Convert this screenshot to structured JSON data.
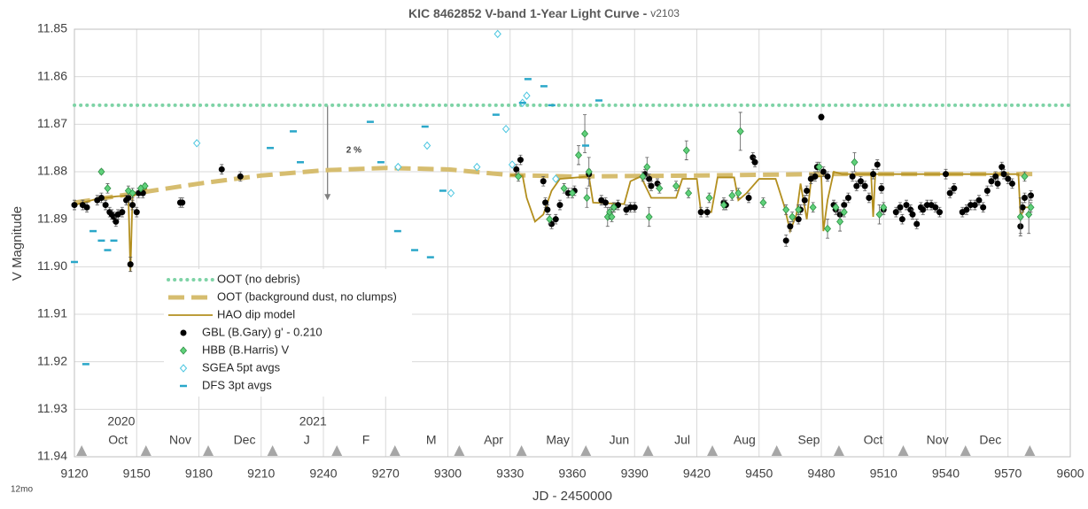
{
  "chart_data": {
    "type": "scatter",
    "title": "KIC 8462852 V-band 1-Year Light Curve -",
    "version": "v2103",
    "xlabel": "JD - 2450000",
    "ylabel": "V Magnitude",
    "footnote": "12mo",
    "xlim": [
      9120,
      9600
    ],
    "xticks": [
      9120,
      9150,
      9180,
      9210,
      9240,
      9270,
      9300,
      9330,
      9360,
      9390,
      9420,
      9450,
      9480,
      9510,
      9540,
      9570,
      9600
    ],
    "ylim": [
      11.85,
      11.94
    ],
    "y_reversed": true,
    "yticks": [
      11.85,
      11.86,
      11.87,
      11.88,
      11.89,
      {
        "value": 11.9,
        "label": "11.90"
      },
      11.91,
      11.92,
      11.93,
      11.94
    ],
    "grid": true,
    "month_markers": [
      9123.5,
      9154.5,
      9184.5,
      9215.5,
      9246.5,
      9274.5,
      9305.5,
      9335.5,
      9366.5,
      9396.5,
      9427.5,
      9458.5,
      9488.5,
      9519.5,
      9549.5,
      9580.5
    ],
    "month_labels": {
      "x": [
        9141,
        9171,
        9202,
        9232,
        9260.5,
        9292,
        9322,
        9353,
        9382.6,
        9413,
        9443,
        9474,
        9505,
        9536,
        9561.5
      ],
      "labels": [
        "Oct",
        "Nov",
        "Dec",
        "J",
        "F",
        "M",
        "Apr",
        "May",
        "Jun",
        "Jul",
        "Aug",
        "Sep",
        "Oct",
        "Nov",
        "Dec"
      ]
    },
    "year_labels": {
      "x": [
        9142.6,
        9235
      ],
      "labels": [
        "2020",
        "2021"
      ]
    },
    "annotation": {
      "text": "2 %",
      "x": 9251,
      "y": 11.8755,
      "arrow_x": 9242,
      "arrow_from": 11.866,
      "arrow_to": 11.886
    },
    "series": [
      {
        "name": "OOT (no debris)",
        "style": "dotted",
        "color": "#7ed3a6",
        "x": [
          9120,
          9600
        ],
        "values": [
          11.866,
          11.866
        ]
      },
      {
        "name": "OOT (background dust, no clumps)",
        "style": "dashed",
        "color": "#d6bd6f",
        "x": [
          9120,
          9150,
          9180,
          9210,
          9240,
          9270,
          9300,
          9330,
          9360,
          9420,
          9480,
          9582
        ],
        "values": [
          11.8865,
          11.8845,
          11.8825,
          11.8808,
          11.8797,
          11.8792,
          11.8795,
          11.8807,
          11.881,
          11.8808,
          11.8805,
          11.8805
        ]
      },
      {
        "name": "HAO dip model",
        "style": "line",
        "color": "#b38f1f",
        "x": [
          9120,
          9130,
          9140,
          9146,
          9147,
          9148,
          9155,
          9240,
          9330,
          9336,
          9338,
          9342,
          9346,
          9350,
          9354,
          9368,
          9370,
          9385,
          9388,
          9393,
          9398,
          9410,
          9413,
          9420,
          9422,
          9427,
          9430,
          9438,
          9440,
          9444,
          9450,
          9458,
          9462,
          9465,
          9468,
          9470,
          9473,
          9475,
          9478,
          9480,
          9481,
          9483,
          9486,
          9490,
          9504,
          9505,
          9506,
          9575,
          9576,
          9578,
          9581
        ],
        "values": [
          11.887,
          11.8858,
          11.8852,
          11.885,
          11.901,
          11.8852,
          11.8835,
          null,
          11.8807,
          11.8808,
          11.8855,
          11.8905,
          11.889,
          11.884,
          11.8815,
          11.881,
          11.8865,
          11.8868,
          11.882,
          11.881,
          11.8855,
          11.8855,
          11.8815,
          11.8815,
          11.8885,
          11.8885,
          11.8812,
          11.8812,
          11.886,
          11.8845,
          11.8815,
          11.8815,
          11.887,
          11.8925,
          11.889,
          11.8825,
          11.89,
          11.882,
          11.881,
          11.881,
          11.8925,
          11.886,
          11.88,
          11.8805,
          11.8805,
          11.8895,
          11.8805,
          11.8805,
          11.8895,
          11.8875,
          11.8875
        ]
      },
      {
        "name": "GBL (B.Gary) g' - 0.210",
        "style": "dot",
        "color": "#000000",
        "x": [
          9120,
          9124,
          9126,
          9131,
          9133,
          9135,
          9137,
          9138,
          9139,
          9140,
          9141,
          9143,
          9145,
          9146,
          9147,
          9148,
          9150,
          9151,
          9153,
          9171,
          9172,
          9191,
          9200,
          9333,
          9335,
          9346,
          9347,
          9348,
          9350,
          9352,
          9354,
          9358,
          9361,
          9368,
          9374,
          9376,
          9378,
          9380,
          9382,
          9386,
          9388,
          9390,
          9395,
          9397,
          9398,
          9401,
          9422,
          9425,
          9433,
          9434,
          9445,
          9447,
          9448,
          9463,
          9465,
          9469,
          9470,
          9472,
          9473,
          9475,
          9477,
          9478,
          9480,
          9481,
          9483,
          9486,
          9487,
          9489,
          9491,
          9493,
          9495,
          9497,
          9499,
          9501,
          9503,
          9505,
          9507,
          9509,
          9510,
          9516,
          9518,
          9519,
          9521,
          9523,
          9524,
          9526,
          9528,
          9529,
          9531,
          9533,
          9535,
          9537,
          9540,
          9542,
          9544,
          9548,
          9550,
          9552,
          9554,
          9556,
          9558,
          9560,
          9562,
          9564,
          9565,
          9567,
          9568,
          9570,
          9572,
          9576,
          9577,
          9578,
          9581
        ],
        "values": [
          11.887,
          11.887,
          11.8875,
          11.886,
          11.8855,
          11.887,
          11.8885,
          11.889,
          11.8895,
          11.8905,
          11.889,
          11.8885,
          11.886,
          11.8855,
          11.8995,
          11.887,
          11.8885,
          11.8845,
          11.8845,
          11.8865,
          11.8865,
          11.8795,
          11.881,
          11.8795,
          11.8775,
          11.882,
          11.8865,
          11.888,
          11.891,
          11.89,
          11.887,
          11.8845,
          11.884,
          11.8805,
          11.886,
          11.8865,
          11.889,
          11.8875,
          11.887,
          11.888,
          11.8875,
          11.8875,
          11.8805,
          11.8815,
          11.883,
          11.8825,
          11.8885,
          11.8885,
          11.8865,
          11.887,
          11.8855,
          11.877,
          11.878,
          11.8945,
          11.8915,
          11.89,
          11.888,
          11.886,
          11.884,
          11.8815,
          11.881,
          11.879,
          11.8685,
          11.88,
          11.881,
          11.887,
          11.888,
          11.889,
          11.887,
          11.8855,
          11.881,
          11.883,
          11.882,
          11.883,
          11.8855,
          11.8805,
          11.8785,
          11.8835,
          11.888,
          11.8885,
          11.8875,
          11.89,
          11.887,
          11.888,
          11.889,
          11.891,
          11.8875,
          11.888,
          11.887,
          11.887,
          11.8875,
          11.8885,
          11.8805,
          11.8845,
          11.8835,
          11.8885,
          11.888,
          11.887,
          11.887,
          11.886,
          11.8875,
          11.884,
          11.882,
          11.881,
          11.8825,
          11.879,
          11.8805,
          11.8815,
          11.8825,
          11.8915,
          11.8875,
          11.8855,
          11.885
        ],
        "errors": [
          0.001,
          0.001,
          0.001,
          0.001,
          0.001,
          0.001,
          0.001,
          0.001,
          0.001,
          0.001,
          0.001,
          0.001,
          0.001,
          0.001,
          0.0015,
          0.001,
          0.001,
          0.001,
          0.001,
          0.001,
          0.001,
          0.001,
          0.001,
          0.001,
          0.001,
          0.001,
          0.001,
          0.001,
          0.001,
          0.001,
          0.001,
          0.001,
          0.001,
          0.001,
          0.001,
          0.001,
          0.001,
          0.001,
          0.001,
          0.001,
          0.001,
          0.001,
          0.001,
          0.001,
          0.001,
          0.001,
          0.001,
          0.001,
          0.001,
          0.001,
          0.001,
          0.001,
          0.001,
          0.0012,
          0.001,
          0.001,
          0.001,
          0.001,
          0.001,
          0.001,
          0.001,
          0.001,
          0.0006,
          0.001,
          0.001,
          0.001,
          0.001,
          0.001,
          0.001,
          0.001,
          0.001,
          0.001,
          0.001,
          0.001,
          0.001,
          0.001,
          0.001,
          0.001,
          0.001,
          0.001,
          0.001,
          0.001,
          0.001,
          0.001,
          0.001,
          0.001,
          0.001,
          0.001,
          0.001,
          0.001,
          0.001,
          0.001,
          0.001,
          0.001,
          0.001,
          0.001,
          0.001,
          0.001,
          0.001,
          0.001,
          0.001,
          0.001,
          0.001,
          0.001,
          0.001,
          0.001,
          0.001,
          0.001,
          0.001,
          0.0015,
          0.001,
          0.001,
          0.001
        ]
      },
      {
        "name": "HBB (B.Harris) V",
        "style": "diamond",
        "color": "#5fd17a",
        "x": [
          9133,
          9136,
          9146,
          9148,
          9152,
          9154,
          9334,
          9349,
          9356,
          9360,
          9363,
          9366,
          9367,
          9368,
          9377,
          9378,
          9379,
          9380,
          9394,
          9396,
          9397,
          9402,
          9410,
          9415,
          9416,
          9426,
          9433,
          9437,
          9440,
          9441,
          9452,
          9463,
          9466,
          9469,
          9476,
          9479,
          9483,
          9487,
          9489,
          9491,
          9496,
          9508,
          9510,
          9576,
          9578,
          9580,
          9581
        ],
        "values": [
          11.88,
          11.8835,
          11.884,
          11.8845,
          11.8835,
          11.883,
          11.881,
          11.89,
          11.8835,
          11.8845,
          11.8765,
          11.872,
          11.8855,
          11.88,
          11.8895,
          11.8885,
          11.8895,
          11.8875,
          11.881,
          11.879,
          11.8895,
          11.8835,
          11.883,
          11.8755,
          11.8845,
          11.8855,
          11.887,
          11.885,
          11.8845,
          11.8715,
          11.8865,
          11.888,
          11.8895,
          11.888,
          11.8875,
          11.879,
          11.892,
          11.8875,
          11.8905,
          11.8885,
          11.878,
          11.889,
          11.8875,
          11.8895,
          11.881,
          11.889,
          11.8875
        ],
        "errors": [
          0.0005,
          0.001,
          0.001,
          0.001,
          0.0005,
          0.0005,
          0.001,
          0.001,
          0.001,
          0.001,
          0.002,
          0.004,
          0.002,
          0.003,
          0.002,
          0.001,
          0.001,
          0.001,
          0.001,
          0.002,
          0.002,
          0.001,
          0.001,
          0.002,
          0.001,
          0.001,
          0.001,
          0.001,
          0.001,
          0.004,
          0.001,
          0.001,
          0.001,
          0.001,
          0.001,
          0.001,
          0.002,
          0.001,
          0.002,
          0.001,
          0.002,
          0.002,
          0.001,
          0.004,
          0.001,
          0.004,
          0.001
        ]
      },
      {
        "name": "SGEA 5pt avgs",
        "style": "open-diamond",
        "color": "#4cc6e0",
        "x": [
          9179,
          9276,
          9290,
          9301.5,
          9314,
          9324,
          9328,
          9331,
          9336,
          9338,
          9352
        ],
        "values": [
          11.874,
          11.879,
          11.8745,
          11.8845,
          11.879,
          11.851,
          11.871,
          11.8785,
          11.8655,
          11.864,
          11.8815
        ]
      },
      {
        "name": "DFS  3pt avgs",
        "style": "dash",
        "color": "#2aa7c9",
        "x": [
          9120,
          9125.5,
          9129,
          9133,
          9136,
          9139,
          9214.4,
          9225.5,
          9228.9,
          9262.6,
          9267.7,
          9275.8,
          9284,
          9289,
          9291.6,
          9297.6,
          9323.2,
          9336,
          9338.6,
          9346.3,
          9350.1,
          9366.4,
          9372.8
        ],
        "values": [
          11.899,
          11.9205,
          11.8925,
          11.8945,
          11.8965,
          11.8945,
          11.875,
          11.8715,
          11.878,
          11.8695,
          11.878,
          11.8925,
          11.8965,
          11.8705,
          11.898,
          11.884,
          11.868,
          11.8655,
          11.8605,
          11.862,
          11.866,
          11.8745,
          11.865
        ]
      }
    ]
  }
}
